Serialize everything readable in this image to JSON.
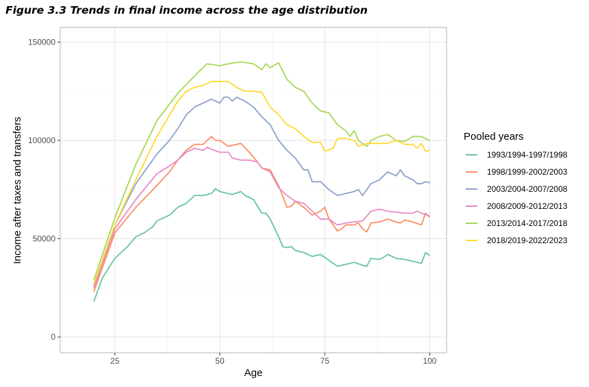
{
  "figure_title": "Figure 3.3  Trends in final income across the age distribution",
  "chart_data": {
    "type": "line",
    "title": "",
    "xlabel": "Age",
    "ylabel": "Income after taxes and transfers",
    "xlim": [
      12,
      104
    ],
    "ylim": [
      -8000,
      157500
    ],
    "xticks": [
      "25",
      "50",
      "75",
      "100"
    ],
    "yticks": [
      "0",
      "50000",
      "100000",
      "150000"
    ],
    "grid": true,
    "legend_title": "Pooled years",
    "legend_position": "right",
    "series": [
      {
        "name": "1993/1994-1997/1998",
        "color": "#66c2a5",
        "points": [
          [
            20,
            18000
          ],
          [
            22,
            30000
          ],
          [
            25,
            40000
          ],
          [
            28,
            46000
          ],
          [
            30,
            51000
          ],
          [
            32,
            53000
          ],
          [
            34,
            56000
          ],
          [
            35,
            59000
          ],
          [
            36,
            60000
          ],
          [
            38,
            62000
          ],
          [
            40,
            66000
          ],
          [
            42,
            68000
          ],
          [
            44,
            72000
          ],
          [
            46,
            72000
          ],
          [
            48,
            73000
          ],
          [
            49,
            75500
          ],
          [
            50,
            74000
          ],
          [
            52,
            73000
          ],
          [
            53,
            72500
          ],
          [
            55,
            74000
          ],
          [
            56,
            72000
          ],
          [
            58,
            70000
          ],
          [
            60,
            63000
          ],
          [
            61,
            63000
          ],
          [
            62,
            60000
          ],
          [
            64,
            51000
          ],
          [
            65,
            46000
          ],
          [
            66,
            45500
          ],
          [
            67,
            46000
          ],
          [
            68,
            44000
          ],
          [
            70,
            43000
          ],
          [
            72,
            41000
          ],
          [
            74,
            42000
          ],
          [
            76,
            39000
          ],
          [
            78,
            36000
          ],
          [
            80,
            37000
          ],
          [
            82,
            38000
          ],
          [
            84,
            36500
          ],
          [
            85,
            36000
          ],
          [
            86,
            40000
          ],
          [
            88,
            39500
          ],
          [
            89,
            40500
          ],
          [
            90,
            42000
          ],
          [
            92,
            40000
          ],
          [
            94,
            39500
          ],
          [
            96,
            38500
          ],
          [
            98,
            37500
          ],
          [
            99,
            43000
          ],
          [
            100,
            41500
          ]
        ]
      },
      {
        "name": "1998/1999-2002/2003",
        "color": "#fc8d62",
        "points": [
          [
            20,
            23000
          ],
          [
            25,
            53000
          ],
          [
            30,
            66000
          ],
          [
            35,
            77000
          ],
          [
            38,
            84000
          ],
          [
            40,
            90000
          ],
          [
            42,
            95000
          ],
          [
            44,
            98000
          ],
          [
            46,
            98000
          ],
          [
            48,
            102000
          ],
          [
            49,
            100000
          ],
          [
            50,
            100000
          ],
          [
            52,
            97000
          ],
          [
            54,
            98000
          ],
          [
            55,
            98500
          ],
          [
            57,
            94000
          ],
          [
            59,
            89000
          ],
          [
            60,
            86000
          ],
          [
            61,
            85500
          ],
          [
            62,
            85000
          ],
          [
            64,
            77000
          ],
          [
            66,
            66000
          ],
          [
            67,
            66500
          ],
          [
            68,
            69000
          ],
          [
            70,
            66000
          ],
          [
            72,
            62000
          ],
          [
            74,
            64000
          ],
          [
            75,
            66000
          ],
          [
            76,
            60000
          ],
          [
            78,
            54000
          ],
          [
            79,
            55000
          ],
          [
            80,
            57000
          ],
          [
            82,
            57000
          ],
          [
            83,
            58000
          ],
          [
            84,
            55000
          ],
          [
            85,
            53500
          ],
          [
            86,
            58000
          ],
          [
            88,
            58500
          ],
          [
            90,
            60000
          ],
          [
            92,
            58500
          ],
          [
            93,
            58000
          ],
          [
            94,
            59500
          ],
          [
            96,
            58500
          ],
          [
            98,
            57000
          ],
          [
            99,
            63000
          ],
          [
            100,
            61000
          ]
        ]
      },
      {
        "name": "2003/2004-2007/2008",
        "color": "#8da0cb",
        "points": [
          [
            20,
            26000
          ],
          [
            25,
            57000
          ],
          [
            30,
            78000
          ],
          [
            35,
            93000
          ],
          [
            38,
            100000
          ],
          [
            40,
            106000
          ],
          [
            42,
            113000
          ],
          [
            44,
            117000
          ],
          [
            46,
            119000
          ],
          [
            48,
            121000
          ],
          [
            50,
            119000
          ],
          [
            51,
            122000
          ],
          [
            52,
            122000
          ],
          [
            53,
            120000
          ],
          [
            54,
            122000
          ],
          [
            56,
            120000
          ],
          [
            58,
            117000
          ],
          [
            60,
            112000
          ],
          [
            62,
            108000
          ],
          [
            64,
            100000
          ],
          [
            66,
            95000
          ],
          [
            68,
            91000
          ],
          [
            70,
            85000
          ],
          [
            71,
            85000
          ],
          [
            72,
            79000
          ],
          [
            74,
            79000
          ],
          [
            76,
            75000
          ],
          [
            78,
            72000
          ],
          [
            80,
            73000
          ],
          [
            82,
            74000
          ],
          [
            83,
            75000
          ],
          [
            84,
            72000
          ],
          [
            86,
            78000
          ],
          [
            88,
            80000
          ],
          [
            90,
            84000
          ],
          [
            91,
            83000
          ],
          [
            92,
            82000
          ],
          [
            93,
            85000
          ],
          [
            94,
            82000
          ],
          [
            96,
            80000
          ],
          [
            97,
            78000
          ],
          [
            98,
            78000
          ],
          [
            99,
            79000
          ],
          [
            100,
            78500
          ]
        ]
      },
      {
        "name": "2008/2009-2012/2013",
        "color": "#e78ac3",
        "points": [
          [
            20,
            25000
          ],
          [
            25,
            55000
          ],
          [
            30,
            70000
          ],
          [
            35,
            83000
          ],
          [
            38,
            87000
          ],
          [
            40,
            90000
          ],
          [
            42,
            94000
          ],
          [
            44,
            96000
          ],
          [
            46,
            95000
          ],
          [
            47,
            96500
          ],
          [
            48,
            95500
          ],
          [
            50,
            94000
          ],
          [
            52,
            94000
          ],
          [
            53,
            91000
          ],
          [
            55,
            90000
          ],
          [
            57,
            90000
          ],
          [
            59,
            89000
          ],
          [
            60,
            86000
          ],
          [
            62,
            84000
          ],
          [
            64,
            76000
          ],
          [
            66,
            72000
          ],
          [
            68,
            69000
          ],
          [
            70,
            68000
          ],
          [
            72,
            64000
          ],
          [
            74,
            60000
          ],
          [
            76,
            60000
          ],
          [
            78,
            57000
          ],
          [
            80,
            58000
          ],
          [
            82,
            58500
          ],
          [
            84,
            59000
          ],
          [
            86,
            64000
          ],
          [
            88,
            65000
          ],
          [
            90,
            64000
          ],
          [
            92,
            63500
          ],
          [
            94,
            63000
          ],
          [
            96,
            63000
          ],
          [
            97,
            64000
          ],
          [
            98,
            63000
          ],
          [
            100,
            61500
          ]
        ]
      },
      {
        "name": "2013/2014-2017/2018",
        "color": "#a6d854",
        "points": [
          [
            20,
            29000
          ],
          [
            25,
            60600
          ],
          [
            30,
            87800
          ],
          [
            35,
            110000
          ],
          [
            40,
            124000
          ],
          [
            45,
            135000
          ],
          [
            47,
            139000
          ],
          [
            50,
            138000
          ],
          [
            52,
            139000
          ],
          [
            55,
            140000
          ],
          [
            58,
            139000
          ],
          [
            60,
            136000
          ],
          [
            61,
            139000
          ],
          [
            62,
            137000
          ],
          [
            64,
            139500
          ],
          [
            66,
            131000
          ],
          [
            68,
            127000
          ],
          [
            70,
            125000
          ],
          [
            72,
            119000
          ],
          [
            74,
            115000
          ],
          [
            76,
            114000
          ],
          [
            78,
            108000
          ],
          [
            80,
            105000
          ],
          [
            81,
            102000
          ],
          [
            82,
            105000
          ],
          [
            83,
            100000
          ],
          [
            85,
            97000
          ],
          [
            86,
            100000
          ],
          [
            88,
            102000
          ],
          [
            90,
            103000
          ],
          [
            92,
            100000
          ],
          [
            94,
            99500
          ],
          [
            96,
            102000
          ],
          [
            98,
            102000
          ],
          [
            100,
            100000
          ]
        ]
      },
      {
        "name": "2018/2019-2022/2023",
        "color": "#ffd92f",
        "points": [
          [
            20,
            27000
          ],
          [
            25,
            57000
          ],
          [
            30,
            80000
          ],
          [
            35,
            102000
          ],
          [
            40,
            120000
          ],
          [
            42,
            125000
          ],
          [
            44,
            127000
          ],
          [
            46,
            128000
          ],
          [
            48,
            130000
          ],
          [
            50,
            130000
          ],
          [
            52,
            130000
          ],
          [
            54,
            127000
          ],
          [
            56,
            125000
          ],
          [
            58,
            125000
          ],
          [
            60,
            124500
          ],
          [
            62,
            117000
          ],
          [
            64,
            113000
          ],
          [
            66,
            108000
          ],
          [
            68,
            106000
          ],
          [
            70,
            102000
          ],
          [
            72,
            99000
          ],
          [
            74,
            99000
          ],
          [
            75,
            94500
          ],
          [
            77,
            96000
          ],
          [
            78,
            101000
          ],
          [
            80,
            101000
          ],
          [
            82,
            100000
          ],
          [
            83,
            97000
          ],
          [
            85,
            98500
          ],
          [
            90,
            98500
          ],
          [
            92,
            100000
          ],
          [
            94,
            98000
          ],
          [
            96,
            98000
          ],
          [
            97,
            96000
          ],
          [
            98,
            98500
          ],
          [
            99,
            94500
          ],
          [
            100,
            95000
          ]
        ]
      }
    ]
  }
}
